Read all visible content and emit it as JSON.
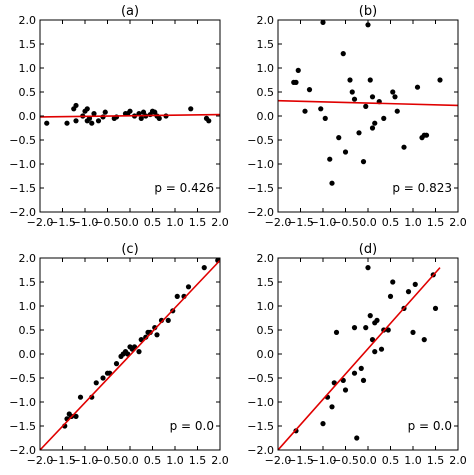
{
  "chart_data": [
    {
      "type": "scatter",
      "title": "(a)",
      "annotation": "p = 0.426",
      "xlim": [
        -2.0,
        2.0
      ],
      "ylim": [
        -2.0,
        2.0
      ],
      "xticks": [
        -2.0,
        -1.5,
        -1.0,
        -0.5,
        0.0,
        0.5,
        1.0,
        1.5,
        2.0
      ],
      "yticks": [
        -2.0,
        -1.5,
        -1.0,
        -0.5,
        0.0,
        0.5,
        1.0,
        1.5,
        2.0
      ],
      "xtick_labels": [
        "−2.0",
        "−1.5",
        "−1.0",
        "−0.5",
        "0.0",
        "0.5",
        "1.0",
        "1.5",
        "2.0"
      ],
      "ytick_labels": [
        "−2.0",
        "−1.5",
        "−1.0",
        "−0.5",
        "0.0",
        "0.5",
        "1.0",
        "1.5",
        "2.0"
      ],
      "show_xtick_labels": true,
      "points_x": [
        -1.85,
        -1.4,
        -1.25,
        -1.2,
        -1.2,
        -1.05,
        -1.0,
        -0.95,
        -0.95,
        -0.9,
        -0.85,
        -0.8,
        -0.7,
        -0.6,
        -0.55,
        -0.35,
        -0.3,
        -0.1,
        -0.05,
        0.0,
        0.1,
        0.2,
        0.25,
        0.3,
        0.35,
        0.45,
        0.5,
        0.55,
        0.6,
        0.65,
        0.8,
        1.35,
        1.7,
        1.75
      ],
      "points_y": [
        -0.15,
        -0.15,
        0.15,
        0.22,
        -0.1,
        0.0,
        0.1,
        0.15,
        -0.1,
        -0.05,
        -0.15,
        0.05,
        -0.1,
        -0.02,
        0.08,
        -0.05,
        -0.02,
        0.05,
        0.05,
        0.1,
        0.0,
        0.05,
        -0.05,
        0.08,
        0.0,
        0.03,
        0.1,
        0.08,
        0.0,
        -0.05,
        0.0,
        0.15,
        -0.05,
        -0.1
      ],
      "fit_line": {
        "x": [
          -2.0,
          2.0
        ],
        "y": [
          -0.02,
          0.03
        ]
      }
    },
    {
      "type": "scatter",
      "title": "(b)",
      "annotation": "p = 0.823",
      "xlim": [
        -2.0,
        2.0
      ],
      "ylim": [
        -2.0,
        2.0
      ],
      "xticks": [
        -2.0,
        -1.5,
        -1.0,
        -0.5,
        0.0,
        0.5,
        1.0,
        1.5,
        2.0
      ],
      "yticks": [
        -2.0,
        -1.5,
        -1.0,
        -0.5,
        0.0,
        0.5,
        1.0,
        1.5,
        2.0
      ],
      "xtick_labels": [
        "−2.0",
        "−1.5",
        "−1.0",
        "−0.5",
        "0.0",
        "0.5",
        "1.0",
        "1.5",
        "2.0"
      ],
      "ytick_labels": [
        "−2.0",
        "−1.5",
        "−1.0",
        "−0.5",
        "0.0",
        "0.5",
        "1.0",
        "1.5",
        "2.0"
      ],
      "show_xtick_labels": true,
      "points_x": [
        -1.65,
        -1.6,
        -1.55,
        -1.4,
        -1.3,
        -1.05,
        -1.0,
        -0.95,
        -0.85,
        -0.8,
        -0.65,
        -0.55,
        -0.5,
        -0.4,
        -0.35,
        -0.3,
        -0.2,
        -0.1,
        -0.05,
        0.0,
        0.05,
        0.1,
        0.1,
        0.15,
        0.25,
        0.35,
        0.55,
        0.6,
        0.65,
        0.8,
        1.1,
        1.2,
        1.25,
        1.3,
        1.6
      ],
      "points_y": [
        0.7,
        0.7,
        0.95,
        0.1,
        0.55,
        0.15,
        1.95,
        -0.05,
        -0.9,
        -1.4,
        -0.45,
        1.3,
        -0.75,
        0.75,
        0.5,
        0.35,
        -0.35,
        -0.95,
        0.2,
        1.9,
        0.75,
        -0.25,
        0.4,
        -0.15,
        0.3,
        -0.05,
        0.5,
        0.4,
        0.1,
        -0.65,
        0.6,
        -0.45,
        -0.4,
        -0.4,
        0.75
      ],
      "fit_line": {
        "x": [
          -2.0,
          2.0
        ],
        "y": [
          0.32,
          0.22
        ]
      }
    },
    {
      "type": "scatter",
      "title": "(c)",
      "annotation": "p = 0.0",
      "xlim": [
        -2.0,
        2.0
      ],
      "ylim": [
        -2.0,
        2.0
      ],
      "xticks": [
        -2.0,
        -1.5,
        -1.0,
        -0.5,
        0.0,
        0.5,
        1.0,
        1.5,
        2.0
      ],
      "yticks": [
        -2.0,
        -1.5,
        -1.0,
        -0.5,
        0.0,
        0.5,
        1.0,
        1.5,
        2.0
      ],
      "xtick_labels": [
        "−2.0",
        "−1.5",
        "−1.0",
        "−0.5",
        "0.0",
        "0.5",
        "1.0",
        "1.5",
        "2.0"
      ],
      "ytick_labels": [
        "−2.0",
        "−1.5",
        "−1.0",
        "−0.5",
        "0.0",
        "0.5",
        "1.0",
        "1.5",
        "2.0"
      ],
      "show_xtick_labels": true,
      "points_x": [
        -1.45,
        -1.4,
        -1.35,
        -1.3,
        -1.2,
        -1.1,
        -0.85,
        -0.75,
        -0.6,
        -0.5,
        -0.45,
        -0.3,
        -0.2,
        -0.15,
        -0.1,
        -0.05,
        0.0,
        0.05,
        0.1,
        0.2,
        0.25,
        0.35,
        0.4,
        0.45,
        0.55,
        0.6,
        0.7,
        0.85,
        0.95,
        1.05,
        1.2,
        1.3,
        1.65,
        1.95
      ],
      "points_y": [
        -1.5,
        -1.35,
        -1.25,
        -1.3,
        -1.3,
        -0.9,
        -0.9,
        -0.6,
        -0.5,
        -0.4,
        -0.4,
        -0.2,
        -0.05,
        0.0,
        0.05,
        0.0,
        0.15,
        0.1,
        0.15,
        0.05,
        0.3,
        0.35,
        0.45,
        0.45,
        0.55,
        0.4,
        0.7,
        0.7,
        0.9,
        1.2,
        1.2,
        1.4,
        1.8,
        1.95
      ],
      "fit_line": {
        "x": [
          -2.0,
          2.0
        ],
        "y": [
          -2.0,
          1.95
        ]
      }
    },
    {
      "type": "scatter",
      "title": "(d)",
      "annotation": "p = 0.0",
      "xlim": [
        -2.0,
        2.0
      ],
      "ylim": [
        -2.0,
        2.0
      ],
      "xticks": [
        -2.0,
        -1.5,
        -1.0,
        -0.5,
        0.0,
        0.5,
        1.0,
        1.5,
        2.0
      ],
      "yticks": [
        -2.0,
        -1.5,
        -1.0,
        -0.5,
        0.0,
        0.5,
        1.0,
        1.5,
        2.0
      ],
      "xtick_labels": [
        "−2.0",
        "−1.5",
        "−1.0",
        "−0.5",
        "0.0",
        "0.5",
        "1.0",
        "1.5",
        "2.0"
      ],
      "ytick_labels": [
        "−2.0",
        "−1.5",
        "−1.0",
        "−0.5",
        "0.0",
        "0.5",
        "1.0",
        "1.5",
        "2.0"
      ],
      "show_xtick_labels": true,
      "points_x": [
        -1.6,
        -1.0,
        -0.9,
        -0.8,
        -0.75,
        -0.7,
        -0.55,
        -0.5,
        -0.3,
        -0.3,
        -0.25,
        -0.15,
        -0.1,
        -0.05,
        0.0,
        0.05,
        0.1,
        0.15,
        0.15,
        0.2,
        0.3,
        0.35,
        0.45,
        0.5,
        0.55,
        0.8,
        0.9,
        1.0,
        1.05,
        1.25,
        1.45,
        1.5
      ],
      "points_y": [
        -1.6,
        -1.45,
        -0.9,
        -1.1,
        -0.6,
        0.45,
        -0.55,
        -0.75,
        -0.4,
        0.55,
        -1.75,
        -0.3,
        -0.55,
        0.55,
        1.8,
        0.8,
        0.3,
        0.65,
        0.05,
        0.7,
        0.1,
        0.5,
        0.5,
        1.2,
        1.5,
        0.95,
        1.3,
        0.45,
        1.45,
        0.3,
        1.65,
        0.95
      ],
      "fit_line": {
        "x": [
          -2.0,
          1.6
        ],
        "y": [
          -2.0,
          1.8
        ]
      }
    }
  ]
}
